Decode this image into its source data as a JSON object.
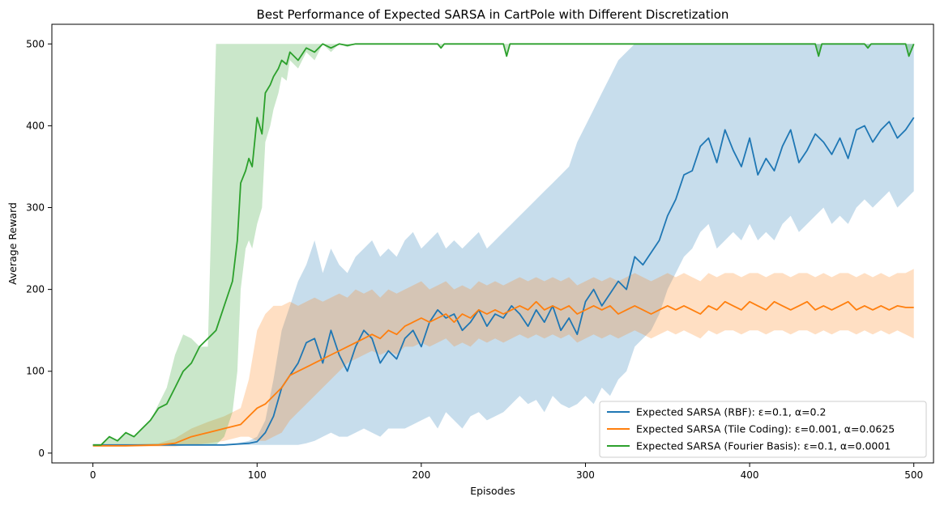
{
  "chart_data": {
    "type": "line",
    "title": "Best Performance of Expected SARSA in CartPole with Different Discretization",
    "xlabel": "Episodes",
    "ylabel": "Average Reward",
    "xlim": [
      -25,
      512
    ],
    "ylim": [
      -12,
      524
    ],
    "xticks": [
      0,
      100,
      200,
      300,
      400,
      500
    ],
    "yticks": [
      0,
      100,
      200,
      300,
      400,
      500
    ],
    "legend_position": "lower-right",
    "grid": false,
    "series": [
      {
        "name": "Expected SARSA (RBF): ε=0.1, α=0.2",
        "color": "#1f77b4",
        "x": [
          0,
          20,
          40,
          60,
          80,
          88,
          95,
          100,
          105,
          110,
          115,
          120,
          125,
          130,
          135,
          140,
          145,
          150,
          155,
          160,
          165,
          170,
          175,
          180,
          185,
          190,
          195,
          200,
          205,
          210,
          215,
          220,
          225,
          230,
          235,
          240,
          245,
          250,
          255,
          260,
          265,
          270,
          275,
          280,
          285,
          290,
          295,
          300,
          305,
          310,
          315,
          320,
          325,
          330,
          335,
          340,
          345,
          350,
          355,
          360,
          365,
          370,
          375,
          380,
          385,
          390,
          395,
          400,
          405,
          410,
          415,
          420,
          425,
          430,
          435,
          440,
          445,
          450,
          455,
          460,
          465,
          470,
          475,
          480,
          485,
          490,
          495,
          500
        ],
        "y": [
          10,
          10,
          10,
          10,
          10,
          11,
          12,
          14,
          25,
          45,
          80,
          95,
          110,
          135,
          140,
          110,
          150,
          120,
          100,
          130,
          150,
          140,
          110,
          125,
          115,
          140,
          150,
          130,
          160,
          175,
          165,
          170,
          150,
          160,
          175,
          155,
          170,
          165,
          180,
          170,
          155,
          175,
          160,
          180,
          150,
          165,
          145,
          185,
          200,
          180,
          195,
          210,
          200,
          240,
          230,
          245,
          260,
          290,
          310,
          340,
          345,
          375,
          385,
          355,
          395,
          370,
          350,
          385,
          340,
          360,
          345,
          375,
          395,
          355,
          370,
          390,
          380,
          365,
          385,
          360,
          395,
          400,
          380,
          395,
          405,
          385,
          395,
          410
        ],
        "band_low": [
          10,
          10,
          10,
          10,
          10,
          10,
          10,
          10,
          10,
          10,
          10,
          10,
          10,
          12,
          15,
          20,
          25,
          20,
          20,
          25,
          30,
          25,
          20,
          30,
          30,
          30,
          35,
          40,
          45,
          30,
          50,
          40,
          30,
          45,
          50,
          40,
          45,
          50,
          60,
          70,
          60,
          65,
          50,
          70,
          60,
          55,
          60,
          70,
          60,
          80,
          70,
          90,
          100,
          130,
          140,
          150,
          170,
          200,
          220,
          240,
          250,
          270,
          280,
          250,
          260,
          270,
          260,
          280,
          260,
          270,
          260,
          280,
          290,
          270,
          280,
          290,
          300,
          280,
          290,
          280,
          300,
          310,
          300,
          310,
          320,
          300,
          310,
          320
        ],
        "band_high": [
          10,
          10,
          10,
          10,
          10,
          12,
          15,
          20,
          40,
          90,
          150,
          180,
          210,
          230,
          260,
          220,
          250,
          230,
          220,
          240,
          250,
          260,
          240,
          250,
          240,
          260,
          270,
          250,
          260,
          270,
          250,
          260,
          250,
          260,
          270,
          250,
          260,
          270,
          280,
          290,
          300,
          310,
          320,
          330,
          340,
          350,
          380,
          400,
          420,
          440,
          460,
          480,
          490,
          500,
          500,
          500,
          500,
          500,
          500,
          500,
          500,
          500,
          500,
          500,
          500,
          500,
          500,
          500,
          500,
          500,
          500,
          500,
          500,
          500,
          500,
          500,
          500,
          500,
          500,
          500,
          500,
          500,
          500,
          500,
          500,
          500,
          500,
          500
        ]
      },
      {
        "name": "Expected SARSA (Tile Coding): ε=0.001, α=0.0625",
        "color": "#ff7f0e",
        "x": [
          0,
          20,
          40,
          50,
          60,
          70,
          80,
          90,
          95,
          100,
          105,
          110,
          115,
          120,
          125,
          130,
          135,
          140,
          145,
          150,
          155,
          160,
          165,
          170,
          175,
          180,
          185,
          190,
          195,
          200,
          205,
          210,
          215,
          220,
          225,
          230,
          235,
          240,
          245,
          250,
          255,
          260,
          265,
          270,
          275,
          280,
          285,
          290,
          295,
          300,
          305,
          310,
          315,
          320,
          325,
          330,
          335,
          340,
          345,
          350,
          355,
          360,
          365,
          370,
          375,
          380,
          385,
          390,
          395,
          400,
          405,
          410,
          415,
          420,
          425,
          430,
          435,
          440,
          445,
          450,
          455,
          460,
          465,
          470,
          475,
          480,
          485,
          490,
          495,
          500
        ],
        "y": [
          9,
          9,
          10,
          12,
          20,
          25,
          30,
          35,
          45,
          55,
          60,
          70,
          80,
          95,
          100,
          105,
          110,
          115,
          120,
          125,
          130,
          135,
          140,
          145,
          140,
          150,
          145,
          155,
          160,
          165,
          160,
          165,
          170,
          160,
          170,
          165,
          175,
          170,
          175,
          170,
          175,
          180,
          175,
          185,
          175,
          180,
          175,
          180,
          170,
          175,
          180,
          175,
          180,
          170,
          175,
          180,
          175,
          170,
          175,
          180,
          175,
          180,
          175,
          170,
          180,
          175,
          185,
          180,
          175,
          185,
          180,
          175,
          185,
          180,
          175,
          180,
          185,
          175,
          180,
          175,
          180,
          185,
          175,
          180,
          175,
          180,
          175,
          180,
          178,
          178
        ],
        "band_low": [
          8,
          8,
          8,
          8,
          10,
          12,
          15,
          20,
          20,
          15,
          15,
          20,
          25,
          40,
          50,
          60,
          70,
          80,
          90,
          100,
          110,
          115,
          120,
          125,
          120,
          125,
          120,
          130,
          130,
          135,
          130,
          135,
          140,
          130,
          135,
          130,
          140,
          135,
          140,
          135,
          140,
          145,
          140,
          145,
          140,
          145,
          140,
          145,
          135,
          140,
          145,
          140,
          145,
          140,
          145,
          150,
          145,
          140,
          145,
          150,
          145,
          150,
          145,
          140,
          150,
          145,
          150,
          150,
          145,
          150,
          150,
          145,
          150,
          150,
          145,
          150,
          150,
          145,
          150,
          145,
          150,
          150,
          145,
          150,
          145,
          150,
          145,
          150,
          145,
          140
        ],
        "band_high": [
          10,
          10,
          12,
          18,
          30,
          38,
          45,
          55,
          90,
          150,
          170,
          180,
          180,
          185,
          180,
          185,
          190,
          185,
          190,
          195,
          190,
          200,
          195,
          200,
          190,
          200,
          195,
          200,
          205,
          210,
          200,
          205,
          210,
          200,
          205,
          200,
          210,
          205,
          210,
          205,
          210,
          215,
          210,
          215,
          210,
          215,
          210,
          215,
          205,
          210,
          215,
          210,
          215,
          210,
          215,
          220,
          215,
          210,
          215,
          220,
          215,
          220,
          215,
          210,
          220,
          215,
          220,
          220,
          215,
          220,
          220,
          215,
          220,
          220,
          215,
          220,
          220,
          215,
          220,
          215,
          220,
          220,
          215,
          220,
          215,
          220,
          215,
          220,
          220,
          225
        ]
      },
      {
        "name": "Expected SARSA (Fourier Basis): ε=0.1, α=0.0001",
        "color": "#2ca02c",
        "x": [
          0,
          5,
          10,
          15,
          20,
          25,
          30,
          35,
          40,
          45,
          50,
          55,
          60,
          65,
          70,
          75,
          80,
          85,
          88,
          90,
          93,
          95,
          97,
          100,
          103,
          105,
          108,
          110,
          113,
          115,
          118,
          120,
          125,
          130,
          135,
          140,
          145,
          150,
          155,
          160,
          165,
          170,
          175,
          180,
          200,
          210,
          212,
          214,
          250,
          252,
          254,
          260,
          300,
          350,
          400,
          440,
          442,
          444,
          470,
          472,
          474,
          495,
          497,
          500
        ],
        "y": [
          10,
          10,
          20,
          15,
          25,
          20,
          30,
          40,
          55,
          60,
          80,
          100,
          110,
          130,
          140,
          150,
          180,
          210,
          260,
          330,
          345,
          360,
          350,
          410,
          390,
          440,
          450,
          460,
          470,
          480,
          475,
          490,
          480,
          495,
          490,
          500,
          495,
          500,
          498,
          500,
          500,
          500,
          500,
          500,
          500,
          500,
          495,
          500,
          500,
          485,
          500,
          500,
          500,
          500,
          500,
          500,
          485,
          500,
          500,
          495,
          500,
          500,
          485,
          500
        ],
        "band_low": [
          10,
          10,
          10,
          10,
          10,
          10,
          10,
          10,
          10,
          10,
          10,
          10,
          10,
          10,
          10,
          10,
          20,
          50,
          100,
          200,
          250,
          260,
          250,
          280,
          300,
          380,
          400,
          420,
          440,
          460,
          455,
          480,
          470,
          490,
          480,
          500,
          490,
          500,
          496,
          500,
          500,
          500,
          500,
          500,
          500,
          500,
          495,
          500,
          500,
          485,
          500,
          500,
          500,
          500,
          500,
          500,
          485,
          500,
          500,
          495,
          500,
          500,
          485,
          500
        ],
        "band_high": [
          10,
          10,
          20,
          15,
          25,
          20,
          30,
          40,
          60,
          80,
          120,
          145,
          140,
          130,
          130,
          500,
          500,
          500,
          500,
          500,
          500,
          500,
          500,
          500,
          500,
          500,
          500,
          500,
          500,
          500,
          500,
          500,
          500,
          500,
          500,
          500,
          500,
          500,
          500,
          500,
          500,
          500,
          500,
          500,
          500,
          500,
          500,
          500,
          500,
          500,
          500,
          500,
          500,
          500,
          500,
          500,
          500,
          500,
          500,
          500,
          500,
          500,
          500,
          500
        ]
      }
    ]
  }
}
